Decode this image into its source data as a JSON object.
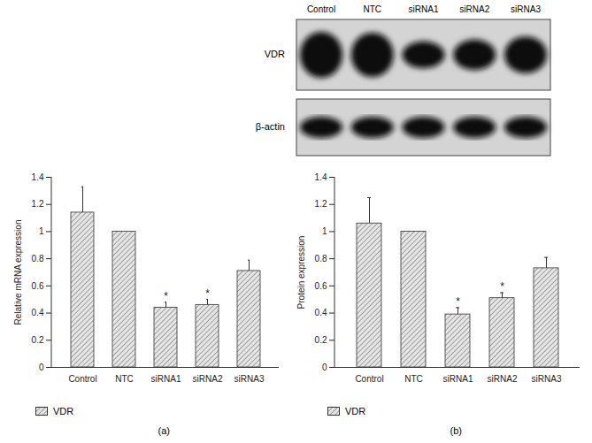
{
  "chart_data": [
    {
      "type": "bar",
      "caption": "(a)",
      "y_label": "Relative mRNA expression",
      "categories": [
        "Control",
        "NTC",
        "siRNA1",
        "siRNA2",
        "siRNA3"
      ],
      "series": [
        {
          "name": "VDR",
          "color": "#8c8c8c",
          "values": [
            1.14,
            1.0,
            0.44,
            0.46,
            0.71
          ],
          "errors": [
            0.19,
            0,
            0.04,
            0.04,
            0.08
          ],
          "annotations": [
            null,
            null,
            "*",
            "*",
            null
          ]
        }
      ],
      "ylim": [
        0,
        1.4
      ],
      "yticks": [
        0,
        0.2,
        0.4,
        0.6,
        0.8,
        1,
        1.2,
        1.4
      ],
      "legend": "bottom"
    },
    {
      "type": "bar",
      "caption": "(b)",
      "y_label": "Protein expression",
      "categories": [
        "Control",
        "NTC",
        "siRNA1",
        "siRNA2",
        "siRNA3"
      ],
      "series": [
        {
          "name": "VDR",
          "color": "#8c8c8c",
          "values": [
            1.06,
            1.0,
            0.39,
            0.51,
            0.73
          ],
          "errors": [
            0.19,
            0,
            0.05,
            0.04,
            0.08
          ],
          "annotations": [
            null,
            null,
            "*",
            "*",
            null
          ]
        }
      ],
      "ylim": [
        0,
        1.4
      ],
      "yticks": [
        0,
        0.2,
        0.4,
        0.6,
        0.8,
        1,
        1.2,
        1.4
      ],
      "legend": "bottom"
    }
  ],
  "blot": {
    "lanes": [
      "Control",
      "NTC",
      "siRNA1",
      "siRNA2",
      "siRNA3"
    ],
    "rows": [
      "VDR",
      "β-actin"
    ]
  }
}
